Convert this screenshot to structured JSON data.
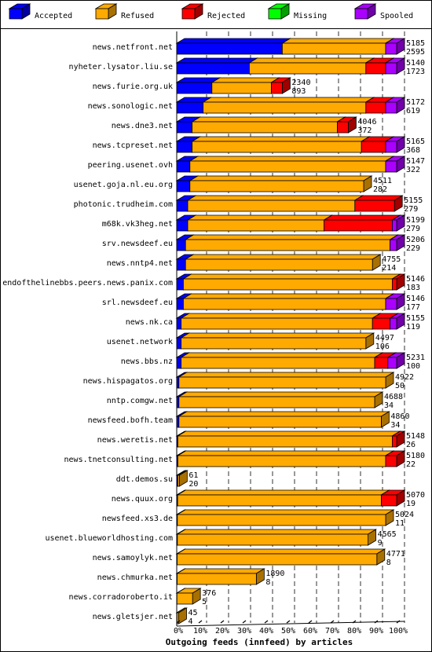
{
  "chart_data": {
    "type": "bar",
    "orientation": "horizontal",
    "stacked": true,
    "percent_stacked": true,
    "xlabel": "Outgoing feeds (innfeed) by articles",
    "xlim": [
      0,
      100
    ],
    "x_ticks": [
      "0%",
      "10%",
      "20%",
      "30%",
      "40%",
      "50%",
      "60%",
      "70%",
      "80%",
      "90%",
      "100%"
    ],
    "grid": true,
    "legend_position": "top",
    "legend": [
      {
        "name": "Accepted",
        "color": "#0000ff",
        "dark": "#0000a0"
      },
      {
        "name": "Refused",
        "color": "#ffaa00",
        "dark": "#a87000"
      },
      {
        "name": "Rejected",
        "color": "#ff0000",
        "dark": "#a00000"
      },
      {
        "name": "Missing",
        "color": "#00ff00",
        "dark": "#00a000"
      },
      {
        "name": "Spooled",
        "color": "#aa00ff",
        "dark": "#7000a8"
      }
    ],
    "rows": [
      {
        "label": "news.netfront.net",
        "total": "5185",
        "accepted_count": "2595",
        "pct": [
          48,
          47,
          0,
          0,
          5
        ]
      },
      {
        "label": "nyheter.lysator.liu.se",
        "total": "5140",
        "accepted_count": "1723",
        "pct": [
          33,
          53,
          9,
          0,
          5
        ]
      },
      {
        "label": "news.furie.org.uk",
        "total": "2340",
        "accepted_count": "893",
        "pct": [
          16,
          27,
          5,
          0,
          0
        ]
      },
      {
        "label": "news.sonologic.net",
        "total": "5172",
        "accepted_count": "619",
        "pct": [
          12,
          74,
          9,
          0,
          5
        ]
      },
      {
        "label": "news.dne3.net",
        "total": "4046",
        "accepted_count": "372",
        "pct": [
          7,
          66,
          5,
          0,
          0
        ]
      },
      {
        "label": "news.tcpreset.net",
        "total": "5165",
        "accepted_count": "368",
        "pct": [
          7,
          77,
          11,
          0,
          5
        ]
      },
      {
        "label": "peering.usenet.ovh",
        "total": "5147",
        "accepted_count": "322",
        "pct": [
          6,
          89,
          0,
          0,
          5
        ]
      },
      {
        "label": "usenet.goja.nl.eu.org",
        "total": "4511",
        "accepted_count": "282",
        "pct": [
          6,
          79,
          0,
          0,
          0
        ]
      },
      {
        "label": "photonic.trudheim.com",
        "total": "5155",
        "accepted_count": "279",
        "pct": [
          5,
          76,
          18,
          0,
          0
        ]
      },
      {
        "label": "m68k.vk3heg.net",
        "total": "5199",
        "accepted_count": "279",
        "pct": [
          5,
          62,
          31,
          0,
          2
        ]
      },
      {
        "label": "srv.newsdeef.eu",
        "total": "5206",
        "accepted_count": "229",
        "pct": [
          4,
          93,
          0,
          0,
          3
        ]
      },
      {
        "label": "news.nntp4.net",
        "total": "4755",
        "accepted_count": "214",
        "pct": [
          4,
          85,
          0,
          0,
          0
        ]
      },
      {
        "label": "endofthelinebbs.peers.news.panix.com",
        "total": "5146",
        "accepted_count": "183",
        "pct": [
          3,
          95,
          2,
          0,
          0
        ]
      },
      {
        "label": "srl.newsdeef.eu",
        "total": "5146",
        "accepted_count": "177",
        "pct": [
          3,
          92,
          0,
          0,
          5
        ]
      },
      {
        "label": "news.nk.ca",
        "total": "5155",
        "accepted_count": "119",
        "pct": [
          2,
          87,
          8,
          0,
          3
        ]
      },
      {
        "label": "usenet.network",
        "total": "4497",
        "accepted_count": "106",
        "pct": [
          2,
          84,
          0,
          0,
          0
        ]
      },
      {
        "label": "news.bbs.nz",
        "total": "5231",
        "accepted_count": "100",
        "pct": [
          2,
          88,
          6,
          0,
          4
        ]
      },
      {
        "label": "news.hispagatos.org",
        "total": "4922",
        "accepted_count": "50",
        "pct": [
          1,
          94,
          0,
          0,
          0
        ]
      },
      {
        "label": "nntp.comgw.net",
        "total": "4688",
        "accepted_count": "34",
        "pct": [
          1,
          89,
          0,
          0,
          0
        ]
      },
      {
        "label": "newsfeed.bofh.team",
        "total": "4860",
        "accepted_count": "34",
        "pct": [
          1,
          92,
          0,
          0,
          0
        ]
      },
      {
        "label": "news.weretis.net",
        "total": "5148",
        "accepted_count": "26",
        "pct": [
          0.5,
          97.5,
          2,
          0,
          0
        ]
      },
      {
        "label": "news.tnetconsulting.net",
        "total": "5180",
        "accepted_count": "22",
        "pct": [
          0.5,
          94.5,
          5,
          0,
          0
        ]
      },
      {
        "label": "ddt.demos.su",
        "total": "61",
        "accepted_count": "20",
        "pct": [
          0.5,
          0.7,
          0,
          0,
          0
        ]
      },
      {
        "label": "news.quux.org",
        "total": "5070",
        "accepted_count": "19",
        "pct": [
          0.4,
          92.6,
          7,
          0,
          0
        ]
      },
      {
        "label": "newsfeed.xs3.de",
        "total": "5024",
        "accepted_count": "11",
        "pct": [
          0.3,
          94.7,
          0,
          0,
          0
        ]
      },
      {
        "label": "usenet.blueworldhosting.com",
        "total": "4565",
        "accepted_count": "9",
        "pct": [
          0.3,
          86.7,
          0,
          0,
          0
        ]
      },
      {
        "label": "news.samoylyk.net",
        "total": "4771",
        "accepted_count": "8",
        "pct": [
          0.2,
          90.8,
          0,
          0,
          0
        ]
      },
      {
        "label": "news.chmurka.net",
        "total": "1890",
        "accepted_count": "8",
        "pct": [
          0.2,
          36,
          0,
          0,
          0
        ]
      },
      {
        "label": "news.corradoroberto.it",
        "total": "376",
        "accepted_count": "5",
        "pct": [
          0.1,
          7.1,
          0,
          0,
          0
        ]
      },
      {
        "label": "news.gletsjer.net",
        "total": "45",
        "accepted_count": "4",
        "pct": [
          0.1,
          0.8,
          0,
          0,
          0
        ]
      }
    ]
  }
}
